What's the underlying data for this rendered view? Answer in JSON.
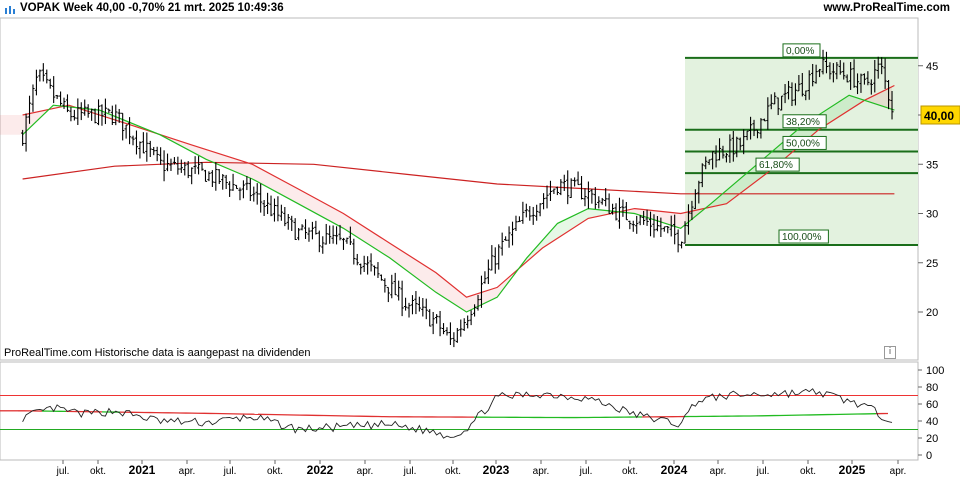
{
  "header": {
    "title": "VOPAK Week 40,00 -0,70% 21 mrt. 2025 10:49:36",
    "source": "www.ProRealTime.com"
  },
  "footnote": "ProRealTime.com  Historische data is aangepast na dividenden",
  "colors": {
    "price": "#000000",
    "ma_fast": "#22bb22",
    "ma_mid": "#e03030",
    "ma_slow_red": "#cc2222",
    "ma_slow_green": "#22bb22",
    "fib_fill": "#e3f2df",
    "fib_line": "#1a6e1a",
    "price_badge": "#ffd700"
  },
  "chart_data": [
    {
      "type": "candlestick",
      "title": "VOPAK Week",
      "x_ticks": [
        "jul.",
        "okt.",
        "2021",
        "apr.",
        "jul.",
        "okt.",
        "2022",
        "apr.",
        "jul.",
        "okt.",
        "2023",
        "apr.",
        "jul.",
        "okt.",
        "2024",
        "apr.",
        "jul.",
        "okt.",
        "2025",
        "apr."
      ],
      "y_ticks": [
        20,
        25,
        30,
        35,
        40,
        45
      ],
      "ylim": [
        15.5,
        47.5
      ],
      "last_price": "40,00",
      "series": [
        {
          "kind": "price",
          "x": [
            "2020-06",
            "2020-07",
            "2020-09",
            "2020-12",
            "2021-03",
            "2021-06",
            "2021-09",
            "2021-12",
            "2022-03",
            "2022-05",
            "2022-07",
            "2022-09",
            "2022-10",
            "2022-11",
            "2023-01",
            "2023-03",
            "2023-05",
            "2023-07",
            "2023-09",
            "2023-11",
            "2024-01",
            "2024-02",
            "2024-03",
            "2024-05",
            "2024-07",
            "2024-09",
            "2024-10",
            "2024-12",
            "2025-01",
            "2025-02",
            "2025-03"
          ],
          "y": [
            38,
            44,
            40,
            40,
            35,
            34,
            32,
            28,
            27,
            24,
            21,
            19,
            17,
            19.5,
            26,
            30,
            33,
            32,
            30,
            29,
            27.5,
            33,
            36,
            37,
            41,
            43,
            45,
            44,
            43,
            45,
            40
          ]
        },
        {
          "kind": "ma_fast",
          "x": [
            "2020-06",
            "2020-08",
            "2020-11",
            "2021-03",
            "2021-06",
            "2021-09",
            "2021-12",
            "2022-03",
            "2022-06",
            "2022-09",
            "2022-11",
            "2023-01",
            "2023-03",
            "2023-05",
            "2023-07",
            "2023-10",
            "2024-01",
            "2024-03",
            "2024-06",
            "2024-09",
            "2024-12",
            "2025-03"
          ],
          "y": [
            38,
            41,
            40.5,
            38,
            35.5,
            33.5,
            31,
            28.5,
            25.5,
            22,
            20,
            21.5,
            25.5,
            29,
            30.5,
            30,
            28.5,
            31,
            35,
            39,
            42,
            40.5
          ]
        },
        {
          "kind": "ma_mid",
          "x": [
            "2020-06",
            "2020-09",
            "2021-01",
            "2021-05",
            "2021-09",
            "2021-12",
            "2022-03",
            "2022-06",
            "2022-09",
            "2022-11",
            "2023-01",
            "2023-04",
            "2023-07",
            "2023-10",
            "2024-01",
            "2024-04",
            "2024-07",
            "2024-10",
            "2025-01",
            "2025-03"
          ],
          "y": [
            40,
            41,
            39,
            37,
            35,
            32.5,
            30,
            27,
            24,
            21.5,
            22.5,
            26.5,
            29.5,
            30.5,
            30,
            31,
            34.5,
            38.5,
            41.5,
            43
          ]
        },
        {
          "kind": "ma_slow",
          "x": [
            "2020-06",
            "2020-12",
            "2021-06",
            "2022-01",
            "2022-07",
            "2023-01",
            "2023-07",
            "2024-01",
            "2024-05",
            "2024-10",
            "2025-03"
          ],
          "y": [
            33.5,
            34.8,
            35.2,
            35,
            34,
            33,
            32.5,
            32,
            32,
            32,
            32
          ]
        }
      ],
      "fibonacci": {
        "high": 45.8,
        "low": 26.8,
        "levels": [
          {
            "label": "0,00%",
            "value": 45.8
          },
          {
            "label": "38,20%",
            "value": 38.5
          },
          {
            "label": "50,00%",
            "value": 36.3
          },
          {
            "label": "61,80%",
            "value": 34.1
          },
          {
            "label": "100,00%",
            "value": 26.8
          }
        ]
      }
    },
    {
      "type": "line",
      "title": "",
      "y_ticks": [
        0,
        20,
        40,
        60,
        80,
        100
      ],
      "ylim": [
        0,
        100
      ],
      "hlines": [
        70,
        30
      ],
      "series": [
        {
          "kind": "oscillator",
          "x": [
            "2020-06",
            "2020-08",
            "2020-10",
            "2020-12",
            "2021-03",
            "2021-06",
            "2021-09",
            "2021-12",
            "2022-03",
            "2022-06",
            "2022-09",
            "2022-10",
            "2022-11",
            "2023-01",
            "2023-04",
            "2023-07",
            "2023-10",
            "2024-01",
            "2024-02",
            "2024-04",
            "2024-07",
            "2024-10",
            "2025-01",
            "2025-02",
            "2025-03"
          ],
          "y": [
            44,
            55,
            48,
            52,
            40,
            38,
            45,
            30,
            33,
            36,
            27,
            22,
            31,
            68,
            72,
            67,
            48,
            36,
            64,
            70,
            72,
            74,
            58,
            47,
            42
          ]
        },
        {
          "kind": "signal",
          "x": [
            "2020-06",
            "2021-06",
            "2022-06",
            "2023-06",
            "2024-06",
            "2025-03"
          ],
          "y": [
            52,
            49,
            45,
            44,
            46,
            49
          ]
        }
      ]
    }
  ]
}
